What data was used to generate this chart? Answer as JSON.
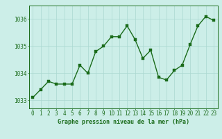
{
  "x": [
    0,
    1,
    2,
    3,
    4,
    5,
    6,
    7,
    8,
    9,
    10,
    11,
    12,
    13,
    14,
    15,
    16,
    17,
    18,
    19,
    20,
    21,
    22,
    23
  ],
  "y": [
    1033.1,
    1033.4,
    1033.7,
    1033.6,
    1033.6,
    1033.6,
    1034.3,
    1034.0,
    1034.8,
    1035.0,
    1035.35,
    1035.35,
    1035.75,
    1035.25,
    1034.55,
    1034.85,
    1033.85,
    1033.75,
    1034.1,
    1034.3,
    1035.05,
    1035.75,
    1036.1,
    1035.95
  ],
  "line_color": "#1a6b1a",
  "marker_color": "#1a6b1a",
  "bg_color": "#cceee8",
  "grid_color": "#aad8d0",
  "axis_color": "#1a6b1a",
  "xlabel": "Graphe pression niveau de la mer (hPa)",
  "ylim": [
    1032.7,
    1036.5
  ],
  "xlim": [
    -0.5,
    23.5
  ],
  "yticks": [
    1033,
    1034,
    1035,
    1036
  ],
  "xticks": [
    0,
    1,
    2,
    3,
    4,
    5,
    6,
    7,
    8,
    9,
    10,
    11,
    12,
    13,
    14,
    15,
    16,
    17,
    18,
    19,
    20,
    21,
    22,
    23
  ],
  "xlabel_fontsize": 6.0,
  "tick_fontsize": 5.5,
  "marker_size": 2.5,
  "line_width": 1.0
}
